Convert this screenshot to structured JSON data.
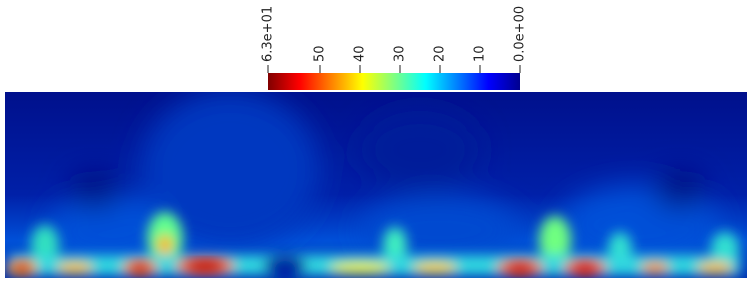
{
  "chart_data": {
    "type": "colorfield",
    "colorbar": {
      "lim": [
        63,
        0
      ],
      "ticks": [
        {
          "value": 63,
          "label": "6.3e+01"
        },
        50,
        40,
        30,
        20,
        10,
        {
          "value": 0,
          "label": "0.0e+00"
        }
      ],
      "colors": [
        "#800000",
        "#ff0000",
        "#ff8000",
        "#ffff00",
        "#80ff80",
        "#00ffff",
        "#0080ff",
        "#0000ff",
        "#00008f"
      ]
    }
  }
}
